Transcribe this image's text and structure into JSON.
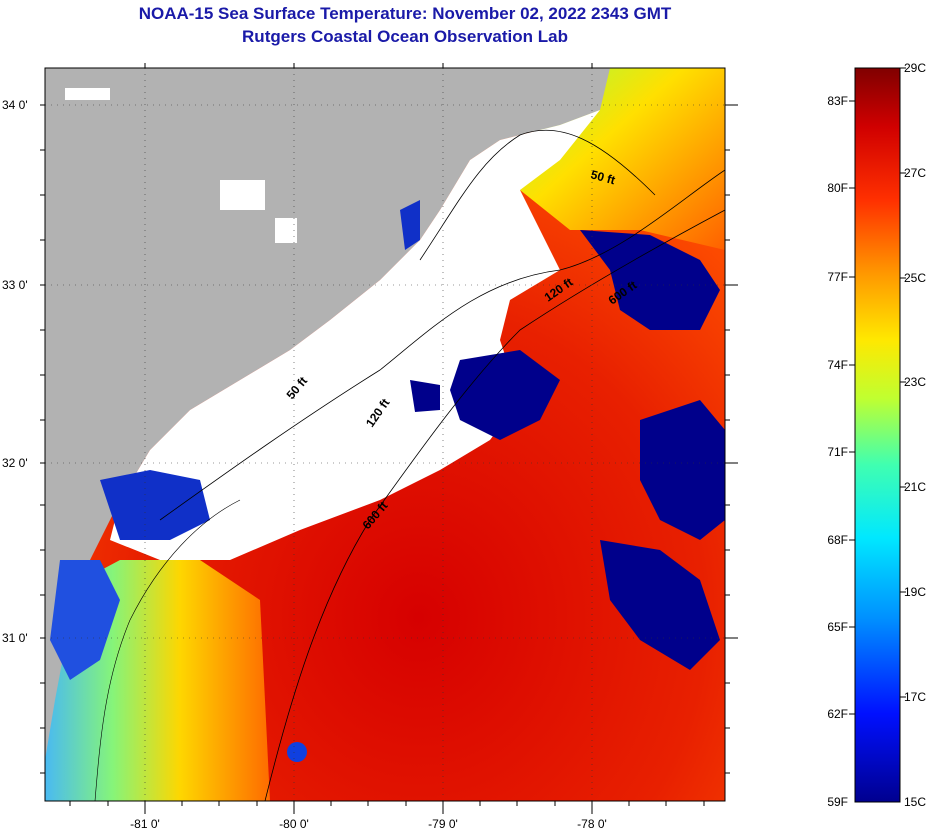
{
  "title_line1": "NOAA-15 Sea Surface Temperature:  November 02, 2022 2343 GMT",
  "title_line2": "Rutgers Coastal Ocean Observation Lab",
  "lat_labels": [
    "34 0'",
    "33 0'",
    "32 0'",
    "31 0'"
  ],
  "lon_labels": [
    "-81 0'",
    "-80 0'",
    "-79 0'",
    "-78 0'"
  ],
  "contours": {
    "fifty": "50 ft",
    "onetwenty": "120 ft",
    "sixhundred": "600 ft"
  },
  "colorbar": {
    "fahrenheit": [
      "83F",
      "80F",
      "77F",
      "74F",
      "71F",
      "68F",
      "65F",
      "62F",
      "59F"
    ],
    "celsius": [
      "29C",
      "27C",
      "25C",
      "23C",
      "21C",
      "19C",
      "17C",
      "15C"
    ]
  },
  "colors": {
    "title": "#1a1aa8",
    "land": "#b2b2b2",
    "cloud": "#ffffff",
    "cold": "#00008b",
    "warm": "#d40000"
  }
}
